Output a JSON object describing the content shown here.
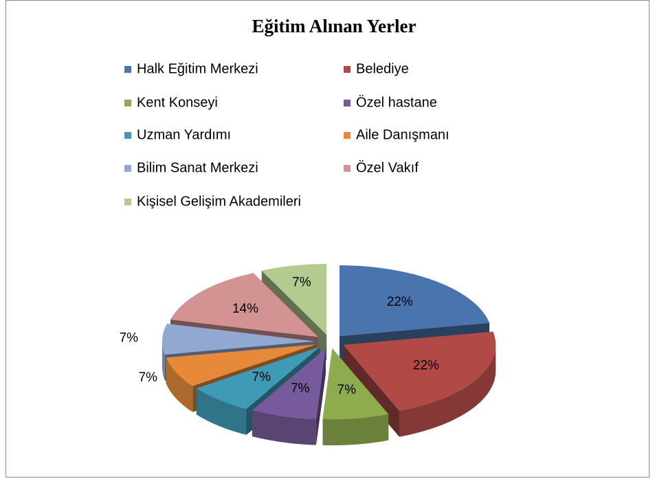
{
  "chart_data": {
    "type": "pie",
    "title": "Eğitim Alınan Yerler",
    "categories": [
      "Halk Eğitim Merkezi",
      "Belediye",
      "Kent Konseyi",
      "Özel hastane",
      "Uzman Yardımı",
      "Aile Danışmanı",
      "Bilim Sanat Merkezi",
      "Özel Vakıf",
      "Kişisel Gelişim Akademileri"
    ],
    "values": [
      22,
      22,
      7,
      7,
      7,
      7,
      7,
      14,
      7
    ],
    "value_labels": [
      "22%",
      "22%",
      "7%",
      "7%",
      "7%",
      "7%",
      "7%",
      "14%",
      "7%"
    ],
    "colors": [
      "#4a74ad",
      "#b14a47",
      "#8eab4d",
      "#765a9b",
      "#3f9bb5",
      "#e68a3a",
      "#91a8d1",
      "#d39393",
      "#b3cb8f"
    ],
    "legend": "top"
  }
}
